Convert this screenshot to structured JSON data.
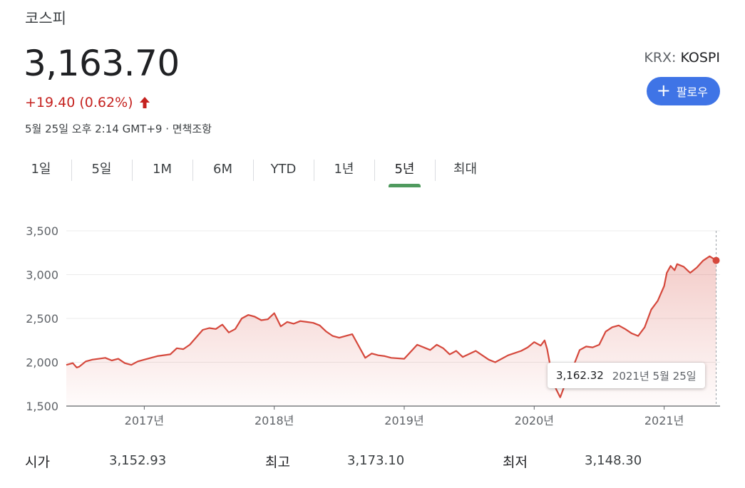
{
  "header": {
    "title": "코스피",
    "price": "3,163.70",
    "change": "+19.40 (0.62%)",
    "timestamp": "5월 25일 오후 2:14 GMT+9 · 면책조항",
    "exchange": "KRX:",
    "symbol": "KOSPI",
    "follow_label": "팔로우",
    "colors": {
      "negative": "#c5221f",
      "follow_bg": "#3f74e6"
    }
  },
  "tabs": [
    {
      "label": "1일",
      "active": false
    },
    {
      "label": "5일",
      "active": false
    },
    {
      "label": "1M",
      "active": false
    },
    {
      "label": "6M",
      "active": false
    },
    {
      "label": "YTD",
      "active": false
    },
    {
      "label": "1년",
      "active": false
    },
    {
      "label": "5년",
      "active": true
    },
    {
      "label": "최대",
      "active": false
    }
  ],
  "tooltip": {
    "value": "3,162.32",
    "date": "2021년 5월 25일"
  },
  "stats": [
    {
      "label": "시가",
      "value": "3,152.93"
    },
    {
      "label": "최고",
      "value": "3,173.10"
    },
    {
      "label": "최저",
      "value": "3,148.30"
    }
  ],
  "chart_data": {
    "type": "area",
    "line_color": "#d5483c",
    "ylim": [
      1500,
      3500
    ],
    "yticks": [
      3500,
      3000,
      2500,
      2000,
      1500
    ],
    "ytick_labels": [
      "3,500",
      "3,000",
      "2,500",
      "2,000",
      "1,500"
    ],
    "xlim": [
      2016.4,
      2021.43
    ],
    "xticks": [
      2017,
      2018,
      2019,
      2020,
      2021
    ],
    "xtick_labels": [
      "2017년",
      "2018년",
      "2019년",
      "2020년",
      "2021년"
    ],
    "grid": true,
    "x": [
      2016.4,
      2016.45,
      2016.48,
      2016.5,
      2016.55,
      2016.6,
      2016.7,
      2016.75,
      2016.8,
      2016.85,
      2016.9,
      2016.95,
      2017.0,
      2017.1,
      2017.2,
      2017.25,
      2017.3,
      2017.35,
      2017.45,
      2017.5,
      2017.55,
      2017.6,
      2017.65,
      2017.7,
      2017.75,
      2017.8,
      2017.85,
      2017.9,
      2017.95,
      2018.0,
      2018.05,
      2018.1,
      2018.15,
      2018.2,
      2018.25,
      2018.3,
      2018.35,
      2018.4,
      2018.45,
      2018.5,
      2018.6,
      2018.7,
      2018.75,
      2018.8,
      2018.85,
      2018.9,
      2019.0,
      2019.1,
      2019.2,
      2019.25,
      2019.3,
      2019.35,
      2019.4,
      2019.45,
      2019.55,
      2019.6,
      2019.65,
      2019.7,
      2019.8,
      2019.9,
      2019.95,
      2020.0,
      2020.05,
      2020.08,
      2020.1,
      2020.15,
      2020.2,
      2020.25,
      2020.3,
      2020.35,
      2020.4,
      2020.45,
      2020.5,
      2020.55,
      2020.6,
      2020.65,
      2020.7,
      2020.75,
      2020.8,
      2020.85,
      2020.9,
      2020.95,
      2021.0,
      2021.02,
      2021.05,
      2021.08,
      2021.1,
      2021.15,
      2021.2,
      2021.25,
      2021.3,
      2021.35,
      2021.4
    ],
    "values": [
      1970,
      1990,
      1940,
      1950,
      2010,
      2030,
      2050,
      2020,
      2040,
      1990,
      1970,
      2010,
      2030,
      2070,
      2090,
      2160,
      2150,
      2200,
      2370,
      2390,
      2380,
      2430,
      2340,
      2380,
      2500,
      2540,
      2520,
      2480,
      2490,
      2560,
      2410,
      2460,
      2440,
      2470,
      2460,
      2450,
      2420,
      2350,
      2300,
      2280,
      2320,
      2050,
      2100,
      2080,
      2070,
      2050,
      2040,
      2200,
      2140,
      2200,
      2160,
      2090,
      2130,
      2060,
      2130,
      2080,
      2030,
      2000,
      2080,
      2130,
      2170,
      2230,
      2190,
      2250,
      2150,
      1750,
      1600,
      1800,
      1950,
      2140,
      2180,
      2170,
      2200,
      2350,
      2400,
      2420,
      2380,
      2330,
      2300,
      2400,
      2600,
      2700,
      2870,
      3020,
      3100,
      3050,
      3120,
      3090,
      3020,
      3080,
      3160,
      3210,
      3162
    ]
  }
}
